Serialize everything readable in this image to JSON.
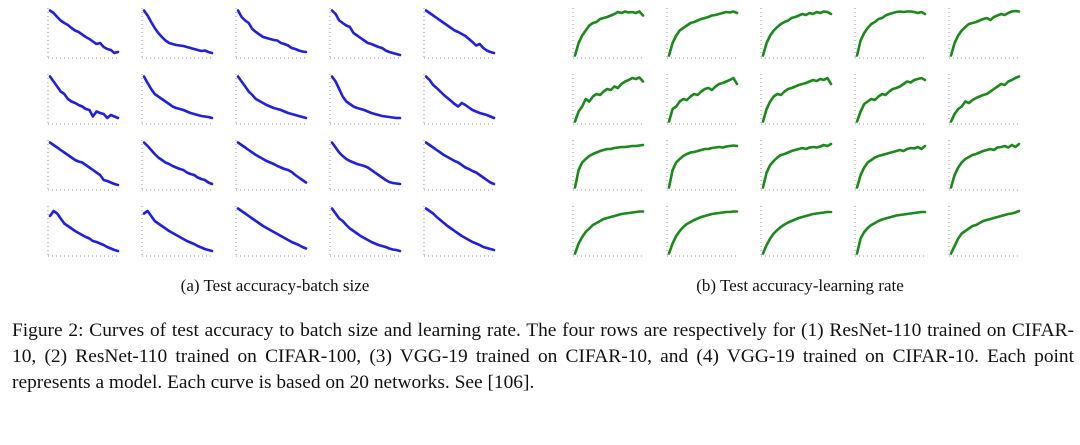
{
  "subcaption_a": "(a) Test accuracy-batch size",
  "subcaption_b": "(b) Test accuracy-learning rate",
  "caption": "Figure 2: Curves of test accuracy to batch size and learning rate. The four rows are respectively for (1) ResNet-110 trained on CIFAR-10, (2) ResNet-110 trained on CIFAR-100, (3) VGG-19 trained on CIFAR-10, and (4) VGG-19 trained on CIFAR-10. Each point represents a model. Each curve is based on 20 networks. See [106].",
  "colors": {
    "batch_curve": "#1f1fe6",
    "lr_curve": "#1a8a1a",
    "axis_dots": "#999999"
  },
  "chart_data": [
    {
      "type": "line",
      "title": "(a) Test accuracy-batch size",
      "grid": false,
      "layout": {
        "rows": 4,
        "cols": 5
      },
      "ylim": [
        0,
        1
      ],
      "x": [
        0,
        1,
        2,
        3,
        4,
        5,
        6,
        7,
        8,
        9,
        10,
        11,
        12,
        13,
        14,
        15,
        16,
        17,
        18,
        19
      ],
      "trend": "decreasing",
      "panels": [
        {
          "row": 1,
          "col": 1,
          "values": [
            0.95,
            0.9,
            0.82,
            0.75,
            0.7,
            0.66,
            0.6,
            0.55,
            0.52,
            0.47,
            0.42,
            0.38,
            0.33,
            0.28,
            0.3,
            0.22,
            0.18,
            0.16,
            0.1,
            0.12
          ]
        },
        {
          "row": 1,
          "col": 2,
          "values": [
            0.95,
            0.85,
            0.72,
            0.6,
            0.5,
            0.42,
            0.35,
            0.3,
            0.28,
            0.26,
            0.25,
            0.24,
            0.22,
            0.2,
            0.18,
            0.16,
            0.14,
            0.15,
            0.12,
            0.1
          ]
        },
        {
          "row": 1,
          "col": 3,
          "values": [
            0.95,
            0.82,
            0.75,
            0.7,
            0.58,
            0.52,
            0.47,
            0.42,
            0.4,
            0.38,
            0.36,
            0.35,
            0.3,
            0.28,
            0.25,
            0.2,
            0.18,
            0.15,
            0.13,
            0.12
          ]
        },
        {
          "row": 1,
          "col": 4,
          "values": [
            0.95,
            0.88,
            0.75,
            0.7,
            0.65,
            0.62,
            0.5,
            0.45,
            0.4,
            0.35,
            0.3,
            0.28,
            0.25,
            0.22,
            0.2,
            0.15,
            0.12,
            0.1,
            0.08,
            0.06
          ]
        },
        {
          "row": 1,
          "col": 5,
          "values": [
            0.95,
            0.9,
            0.85,
            0.8,
            0.75,
            0.7,
            0.65,
            0.6,
            0.55,
            0.52,
            0.48,
            0.44,
            0.38,
            0.32,
            0.25,
            0.28,
            0.2,
            0.15,
            0.12,
            0.1
          ]
        },
        {
          "row": 2,
          "col": 1,
          "values": [
            0.95,
            0.85,
            0.75,
            0.65,
            0.6,
            0.5,
            0.45,
            0.42,
            0.38,
            0.35,
            0.3,
            0.28,
            0.15,
            0.25,
            0.22,
            0.2,
            0.12,
            0.18,
            0.15,
            0.12
          ]
        },
        {
          "row": 2,
          "col": 2,
          "values": [
            0.95,
            0.82,
            0.7,
            0.6,
            0.55,
            0.5,
            0.45,
            0.4,
            0.35,
            0.32,
            0.3,
            0.28,
            0.25,
            0.22,
            0.2,
            0.18,
            0.16,
            0.15,
            0.14,
            0.12
          ]
        },
        {
          "row": 2,
          "col": 3,
          "values": [
            0.95,
            0.85,
            0.75,
            0.65,
            0.58,
            0.5,
            0.46,
            0.42,
            0.38,
            0.35,
            0.32,
            0.3,
            0.28,
            0.25,
            0.22,
            0.2,
            0.18,
            0.16,
            0.14,
            0.12
          ]
        },
        {
          "row": 2,
          "col": 4,
          "values": [
            0.95,
            0.85,
            0.7,
            0.55,
            0.45,
            0.4,
            0.35,
            0.32,
            0.3,
            0.28,
            0.25,
            0.22,
            0.2,
            0.18,
            0.16,
            0.15,
            0.14,
            0.13,
            0.12,
            0.12
          ]
        },
        {
          "row": 2,
          "col": 5,
          "values": [
            0.95,
            0.88,
            0.78,
            0.72,
            0.65,
            0.58,
            0.52,
            0.46,
            0.4,
            0.35,
            0.42,
            0.38,
            0.33,
            0.28,
            0.25,
            0.22,
            0.2,
            0.18,
            0.15,
            0.12
          ]
        },
        {
          "row": 3,
          "col": 1,
          "values": [
            0.95,
            0.9,
            0.85,
            0.8,
            0.75,
            0.7,
            0.65,
            0.6,
            0.57,
            0.55,
            0.5,
            0.45,
            0.4,
            0.35,
            0.3,
            0.2,
            0.18,
            0.15,
            0.12,
            0.1
          ]
        },
        {
          "row": 3,
          "col": 2,
          "values": [
            0.95,
            0.88,
            0.8,
            0.72,
            0.65,
            0.6,
            0.55,
            0.52,
            0.48,
            0.45,
            0.42,
            0.4,
            0.35,
            0.32,
            0.3,
            0.25,
            0.22,
            0.2,
            0.15,
            0.12
          ]
        },
        {
          "row": 3,
          "col": 3,
          "values": [
            0.95,
            0.9,
            0.85,
            0.8,
            0.75,
            0.7,
            0.66,
            0.62,
            0.58,
            0.55,
            0.52,
            0.48,
            0.45,
            0.42,
            0.4,
            0.36,
            0.3,
            0.25,
            0.2,
            0.15
          ]
        },
        {
          "row": 3,
          "col": 4,
          "values": [
            0.95,
            0.85,
            0.75,
            0.68,
            0.62,
            0.58,
            0.55,
            0.52,
            0.5,
            0.48,
            0.45,
            0.4,
            0.35,
            0.3,
            0.25,
            0.2,
            0.16,
            0.14,
            0.13,
            0.12
          ]
        },
        {
          "row": 3,
          "col": 5,
          "values": [
            0.95,
            0.9,
            0.85,
            0.8,
            0.75,
            0.7,
            0.66,
            0.62,
            0.58,
            0.55,
            0.5,
            0.45,
            0.42,
            0.38,
            0.35,
            0.3,
            0.25,
            0.2,
            0.15,
            0.12
          ]
        },
        {
          "row": 4,
          "col": 1,
          "values": [
            0.8,
            0.9,
            0.85,
            0.75,
            0.65,
            0.6,
            0.55,
            0.5,
            0.46,
            0.42,
            0.38,
            0.35,
            0.3,
            0.28,
            0.25,
            0.22,
            0.18,
            0.15,
            0.12,
            0.1
          ]
        },
        {
          "row": 4,
          "col": 2,
          "values": [
            0.85,
            0.9,
            0.8,
            0.7,
            0.65,
            0.6,
            0.55,
            0.5,
            0.46,
            0.42,
            0.38,
            0.34,
            0.3,
            0.27,
            0.24,
            0.2,
            0.17,
            0.14,
            0.12,
            0.1
          ]
        },
        {
          "row": 4,
          "col": 3,
          "values": [
            0.95,
            0.9,
            0.85,
            0.8,
            0.75,
            0.7,
            0.65,
            0.6,
            0.56,
            0.52,
            0.48,
            0.44,
            0.4,
            0.36,
            0.32,
            0.28,
            0.25,
            0.22,
            0.18,
            0.15
          ]
        },
        {
          "row": 4,
          "col": 4,
          "values": [
            0.95,
            0.85,
            0.75,
            0.7,
            0.62,
            0.55,
            0.5,
            0.45,
            0.4,
            0.36,
            0.32,
            0.28,
            0.25,
            0.22,
            0.2,
            0.18,
            0.15,
            0.13,
            0.12,
            0.1
          ]
        },
        {
          "row": 4,
          "col": 5,
          "values": [
            0.95,
            0.9,
            0.85,
            0.78,
            0.72,
            0.66,
            0.6,
            0.55,
            0.5,
            0.45,
            0.4,
            0.36,
            0.32,
            0.28,
            0.25,
            0.22,
            0.18,
            0.16,
            0.14,
            0.12
          ]
        }
      ]
    },
    {
      "type": "line",
      "title": "(b) Test accuracy-learning rate",
      "grid": false,
      "layout": {
        "rows": 4,
        "cols": 5
      },
      "ylim": [
        0,
        1
      ],
      "x": [
        0,
        1,
        2,
        3,
        4,
        5,
        6,
        7,
        8,
        9,
        10,
        11,
        12,
        13,
        14,
        15,
        16,
        17,
        18,
        19
      ],
      "trend": "increasing",
      "panels": [
        {
          "row": 1,
          "col": 1,
          "values": [
            0.05,
            0.3,
            0.45,
            0.55,
            0.65,
            0.7,
            0.72,
            0.78,
            0.8,
            0.82,
            0.85,
            0.88,
            0.92,
            0.9,
            0.93,
            0.91,
            0.92,
            0.9,
            0.93,
            0.85
          ]
        },
        {
          "row": 1,
          "col": 2,
          "values": [
            0.05,
            0.3,
            0.45,
            0.55,
            0.6,
            0.65,
            0.7,
            0.72,
            0.75,
            0.78,
            0.8,
            0.82,
            0.85,
            0.86,
            0.88,
            0.9,
            0.92,
            0.91,
            0.93,
            0.9
          ]
        },
        {
          "row": 1,
          "col": 3,
          "values": [
            0.05,
            0.3,
            0.45,
            0.55,
            0.62,
            0.68,
            0.72,
            0.75,
            0.8,
            0.82,
            0.85,
            0.88,
            0.86,
            0.9,
            0.88,
            0.92,
            0.9,
            0.93,
            0.92,
            0.88
          ]
        },
        {
          "row": 1,
          "col": 4,
          "values": [
            0.05,
            0.35,
            0.5,
            0.6,
            0.68,
            0.72,
            0.78,
            0.8,
            0.85,
            0.88,
            0.9,
            0.92,
            0.93,
            0.92,
            0.93,
            0.93,
            0.92,
            0.9,
            0.92,
            0.88
          ]
        },
        {
          "row": 1,
          "col": 5,
          "values": [
            0.05,
            0.3,
            0.45,
            0.55,
            0.62,
            0.68,
            0.7,
            0.72,
            0.75,
            0.78,
            0.8,
            0.76,
            0.82,
            0.85,
            0.88,
            0.86,
            0.9,
            0.93,
            0.94,
            0.93
          ]
        },
        {
          "row": 2,
          "col": 1,
          "values": [
            0.05,
            0.25,
            0.35,
            0.5,
            0.45,
            0.55,
            0.6,
            0.58,
            0.65,
            0.7,
            0.68,
            0.75,
            0.72,
            0.8,
            0.85,
            0.88,
            0.92,
            0.9,
            0.93,
            0.85
          ]
        },
        {
          "row": 2,
          "col": 2,
          "values": [
            0.05,
            0.3,
            0.35,
            0.45,
            0.5,
            0.48,
            0.55,
            0.6,
            0.58,
            0.65,
            0.7,
            0.72,
            0.68,
            0.75,
            0.8,
            0.82,
            0.85,
            0.88,
            0.92,
            0.8
          ]
        },
        {
          "row": 2,
          "col": 3,
          "values": [
            0.05,
            0.3,
            0.45,
            0.55,
            0.6,
            0.58,
            0.65,
            0.7,
            0.72,
            0.75,
            0.78,
            0.8,
            0.82,
            0.85,
            0.88,
            0.86,
            0.9,
            0.88,
            0.92,
            0.8
          ]
        },
        {
          "row": 2,
          "col": 4,
          "values": [
            0.05,
            0.25,
            0.4,
            0.45,
            0.5,
            0.48,
            0.55,
            0.6,
            0.58,
            0.65,
            0.7,
            0.72,
            0.75,
            0.8,
            0.85,
            0.83,
            0.88,
            0.9,
            0.92,
            0.88
          ]
        },
        {
          "row": 2,
          "col": 5,
          "values": [
            0.05,
            0.2,
            0.3,
            0.35,
            0.45,
            0.42,
            0.48,
            0.52,
            0.55,
            0.58,
            0.6,
            0.65,
            0.7,
            0.75,
            0.8,
            0.78,
            0.85,
            0.88,
            0.92,
            0.95
          ]
        },
        {
          "row": 3,
          "col": 1,
          "values": [
            0.05,
            0.4,
            0.55,
            0.62,
            0.68,
            0.72,
            0.75,
            0.78,
            0.8,
            0.82,
            0.82,
            0.84,
            0.85,
            0.86,
            0.86,
            0.87,
            0.88,
            0.88,
            0.89,
            0.9
          ]
        },
        {
          "row": 3,
          "col": 2,
          "values": [
            0.05,
            0.4,
            0.55,
            0.62,
            0.68,
            0.72,
            0.75,
            0.76,
            0.78,
            0.8,
            0.82,
            0.82,
            0.84,
            0.85,
            0.86,
            0.85,
            0.87,
            0.88,
            0.89,
            0.88
          ]
        },
        {
          "row": 3,
          "col": 3,
          "values": [
            0.05,
            0.35,
            0.5,
            0.58,
            0.65,
            0.7,
            0.72,
            0.75,
            0.78,
            0.8,
            0.82,
            0.84,
            0.82,
            0.85,
            0.86,
            0.85,
            0.87,
            0.9,
            0.88,
            0.92
          ]
        },
        {
          "row": 3,
          "col": 4,
          "values": [
            0.05,
            0.3,
            0.45,
            0.55,
            0.6,
            0.65,
            0.68,
            0.7,
            0.72,
            0.74,
            0.76,
            0.78,
            0.8,
            0.78,
            0.82,
            0.84,
            0.83,
            0.86,
            0.82,
            0.88
          ]
        },
        {
          "row": 3,
          "col": 5,
          "values": [
            0.05,
            0.3,
            0.45,
            0.55,
            0.62,
            0.66,
            0.7,
            0.72,
            0.75,
            0.78,
            0.8,
            0.82,
            0.8,
            0.85,
            0.86,
            0.88,
            0.85,
            0.9,
            0.86,
            0.92
          ]
        },
        {
          "row": 4,
          "col": 1,
          "values": [
            0.05,
            0.25,
            0.38,
            0.48,
            0.55,
            0.62,
            0.66,
            0.7,
            0.74,
            0.76,
            0.78,
            0.8,
            0.82,
            0.84,
            0.85,
            0.86,
            0.87,
            0.88,
            0.89,
            0.89
          ]
        },
        {
          "row": 4,
          "col": 2,
          "values": [
            0.05,
            0.25,
            0.4,
            0.5,
            0.58,
            0.64,
            0.68,
            0.72,
            0.75,
            0.78,
            0.8,
            0.82,
            0.84,
            0.85,
            0.86,
            0.87,
            0.88,
            0.88,
            0.89,
            0.89
          ]
        },
        {
          "row": 4,
          "col": 3,
          "values": [
            0.05,
            0.22,
            0.35,
            0.45,
            0.52,
            0.58,
            0.63,
            0.67,
            0.7,
            0.73,
            0.76,
            0.78,
            0.8,
            0.82,
            0.84,
            0.85,
            0.86,
            0.87,
            0.88,
            0.88
          ]
        },
        {
          "row": 4,
          "col": 4,
          "values": [
            0.05,
            0.35,
            0.48,
            0.56,
            0.62,
            0.66,
            0.7,
            0.73,
            0.75,
            0.77,
            0.79,
            0.81,
            0.82,
            0.83,
            0.84,
            0.85,
            0.86,
            0.87,
            0.88,
            0.88
          ]
        },
        {
          "row": 4,
          "col": 5,
          "values": [
            0.05,
            0.2,
            0.35,
            0.45,
            0.5,
            0.55,
            0.6,
            0.62,
            0.66,
            0.7,
            0.72,
            0.74,
            0.76,
            0.78,
            0.8,
            0.82,
            0.84,
            0.85,
            0.87,
            0.9
          ]
        }
      ]
    }
  ]
}
